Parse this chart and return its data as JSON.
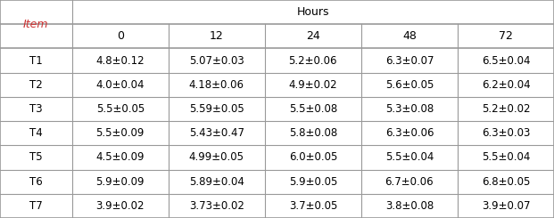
{
  "header_group": "Hours",
  "col_headers": [
    "0",
    "12",
    "24",
    "48",
    "72"
  ],
  "row_headers": [
    "T1",
    "T2",
    "T3",
    "T4",
    "T5",
    "T6",
    "T7"
  ],
  "item_label": "Item",
  "item_label_color": "#cc3333",
  "cells": [
    [
      "4.8±0.12",
      "5.07±0.03",
      "5.2±0.06",
      "6.3±0.07",
      "6.5±0.04"
    ],
    [
      "4.0±0.04",
      "4.18±0.06",
      "4.9±0.02",
      "5.6±0.05",
      "6.2±0.04"
    ],
    [
      "5.5±0.05",
      "5.59±0.05",
      "5.5±0.08",
      "5.3±0.08",
      "5.2±0.02"
    ],
    [
      "5.5±0.09",
      "5.43±0.47",
      "5.8±0.08",
      "6.3±0.06",
      "6.3±0.03"
    ],
    [
      "4.5±0.09",
      "4.99±0.05",
      "6.0±0.05",
      "5.5±0.04",
      "5.5±0.04"
    ],
    [
      "5.9±0.09",
      "5.89±0.04",
      "5.9±0.05",
      "6.7±0.06",
      "6.8±0.05"
    ],
    [
      "3.9±0.02",
      "3.73±0.02",
      "3.7±0.05",
      "3.8±0.08",
      "3.9±0.07"
    ]
  ],
  "bg_color": "#ffffff",
  "text_color": "#000000",
  "line_color": "#999999",
  "font_size": 8.5,
  "header_font_size": 9
}
